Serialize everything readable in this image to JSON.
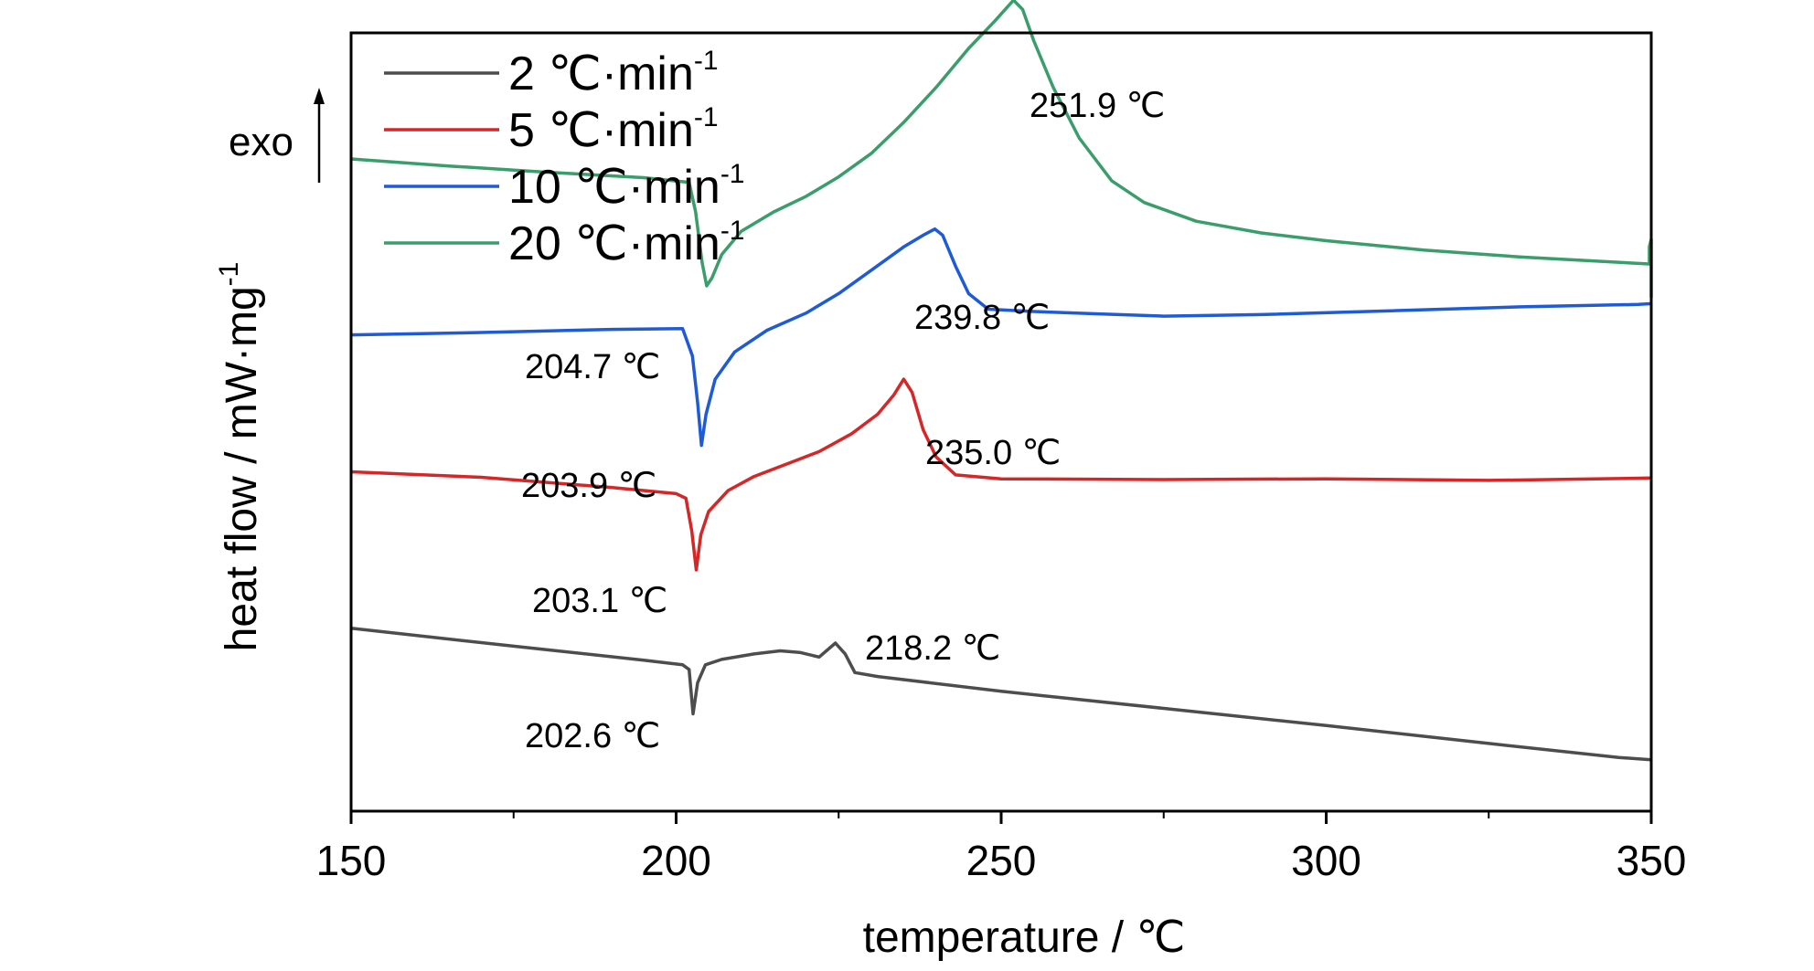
{
  "chart_data": {
    "type": "line",
    "xlabel": "temperature / ℃",
    "ylabel": "heat flow / mW·mg",
    "ylabel_superscript": "-1",
    "exo_label": "exo",
    "xlim": [
      150,
      350
    ],
    "ylim": [
      0,
      100
    ],
    "x_ticks": [
      150,
      200,
      250,
      300,
      350
    ],
    "x_minor_ticks": [
      175,
      225,
      275,
      325
    ],
    "y_ticks_shown": false,
    "grid": false,
    "legend": {
      "position": "top-left",
      "unit_superscript": "-1",
      "entries": [
        {
          "value": "2",
          "unit": "℃·min"
        },
        {
          "value": "5",
          "unit": "℃·min"
        },
        {
          "value": "10",
          "unit": "℃·min"
        },
        {
          "value": "20",
          "unit": "℃·min"
        }
      ]
    },
    "series": [
      {
        "color": "#4d4d4d",
        "points": [
          [
            150,
            23.5
          ],
          [
            175,
            21.2
          ],
          [
            195,
            19.4
          ],
          [
            201,
            18.8
          ],
          [
            202,
            18.2
          ],
          [
            202.6,
            12.5
          ],
          [
            203.3,
            16.5
          ],
          [
            204.5,
            18.8
          ],
          [
            207,
            19.5
          ],
          [
            212,
            20.2
          ],
          [
            216,
            20.6
          ],
          [
            219,
            20.4
          ],
          [
            222,
            19.8
          ],
          [
            224.5,
            21.6
          ],
          [
            226,
            20.2
          ],
          [
            227.5,
            17.8
          ],
          [
            231,
            17.3
          ],
          [
            250,
            15.4
          ],
          [
            275,
            13.2
          ],
          [
            300,
            11.0
          ],
          [
            325,
            8.7
          ],
          [
            345,
            6.9
          ],
          [
            350,
            6.6
          ]
        ]
      },
      {
        "color": "#d62728",
        "points": [
          [
            150,
            43.6
          ],
          [
            170,
            42.9
          ],
          [
            190,
            41.6
          ],
          [
            200,
            40.8
          ],
          [
            201.5,
            40.2
          ],
          [
            202.4,
            36.0
          ],
          [
            203.1,
            31.0
          ],
          [
            203.8,
            35.5
          ],
          [
            205,
            38.5
          ],
          [
            208,
            41.2
          ],
          [
            212,
            43.0
          ],
          [
            217,
            44.6
          ],
          [
            222,
            46.2
          ],
          [
            227,
            48.5
          ],
          [
            231,
            51.0
          ],
          [
            233.5,
            53.5
          ],
          [
            235,
            55.5
          ],
          [
            236.3,
            53.8
          ],
          [
            238,
            49.0
          ],
          [
            240,
            45.5
          ],
          [
            243,
            43.2
          ],
          [
            250,
            42.7
          ],
          [
            275,
            42.6
          ],
          [
            300,
            42.7
          ],
          [
            325,
            42.5
          ],
          [
            350,
            42.8
          ]
        ]
      },
      {
        "color": "#1f5bd6",
        "points": [
          [
            150,
            61.2
          ],
          [
            170,
            61.5
          ],
          [
            190,
            61.9
          ],
          [
            201,
            62.0
          ],
          [
            202.5,
            58.5
          ],
          [
            203.3,
            52.5
          ],
          [
            203.9,
            47.0
          ],
          [
            204.6,
            51.0
          ],
          [
            206,
            55.5
          ],
          [
            209,
            59.0
          ],
          [
            214,
            61.8
          ],
          [
            220,
            64.0
          ],
          [
            225,
            66.5
          ],
          [
            230,
            69.5
          ],
          [
            235,
            72.5
          ],
          [
            238,
            74.0
          ],
          [
            239.8,
            74.8
          ],
          [
            241,
            74.0
          ],
          [
            243,
            70.0
          ],
          [
            245,
            66.5
          ],
          [
            248,
            64.5
          ],
          [
            255,
            64.2
          ],
          [
            265,
            63.9
          ],
          [
            275,
            63.6
          ],
          [
            290,
            63.8
          ],
          [
            310,
            64.3
          ],
          [
            330,
            64.8
          ],
          [
            348,
            65.1
          ],
          [
            349.8,
            65.2
          ]
        ]
      },
      {
        "color": "#3a9e6b",
        "points": [
          [
            150,
            83.8
          ],
          [
            165,
            82.9
          ],
          [
            180,
            82.1
          ],
          [
            195,
            81.4
          ],
          [
            202,
            80.8
          ],
          [
            203,
            77.0
          ],
          [
            204,
            70.5
          ],
          [
            204.7,
            67.5
          ],
          [
            205.5,
            68.5
          ],
          [
            207,
            71.5
          ],
          [
            210,
            74.5
          ],
          [
            215,
            77.0
          ],
          [
            220,
            79.0
          ],
          [
            225,
            81.5
          ],
          [
            230,
            84.5
          ],
          [
            235,
            88.5
          ],
          [
            240,
            93.0
          ],
          [
            245,
            98.0
          ],
          [
            249,
            101.5
          ],
          [
            251.9,
            104.2
          ],
          [
            253.3,
            103.0
          ],
          [
            255,
            99.0
          ],
          [
            258,
            93.0
          ],
          [
            262,
            86.5
          ],
          [
            267,
            81.0
          ],
          [
            272,
            78.2
          ],
          [
            280,
            75.8
          ],
          [
            290,
            74.3
          ],
          [
            300,
            73.3
          ],
          [
            315,
            72.1
          ],
          [
            330,
            71.2
          ],
          [
            349.7,
            70.3
          ],
          [
            349.7,
            72.5
          ],
          [
            350,
            73.5
          ],
          [
            350,
            66.0
          ]
        ]
      }
    ],
    "annotations": [
      {
        "text": "202.6 ℃"
      },
      {
        "text": "218.2 ℃"
      },
      {
        "text": "203.1 ℃"
      },
      {
        "text": "235.0 ℃"
      },
      {
        "text": "203.9 ℃"
      },
      {
        "text": "239.8 ℃"
      },
      {
        "text": "204.7 ℃"
      },
      {
        "text": "251.9 ℃"
      }
    ]
  }
}
